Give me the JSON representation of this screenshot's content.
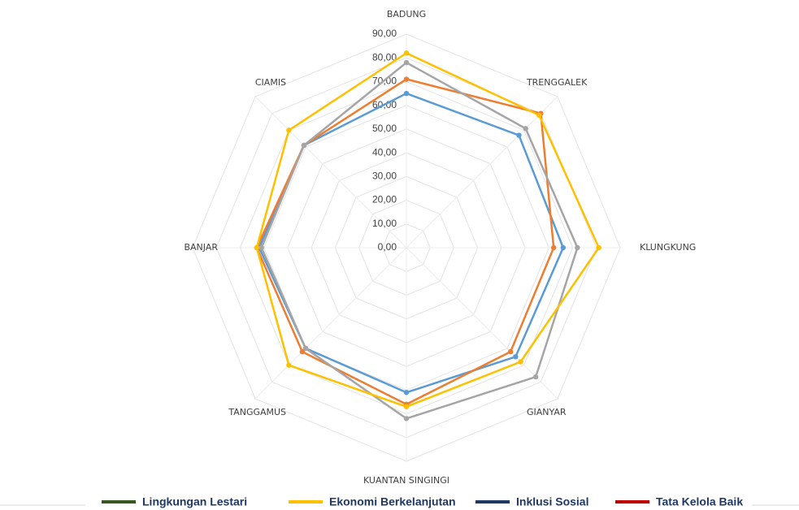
{
  "chart_data": {
    "type": "radar",
    "categories": [
      "BADUNG",
      "TRENGGALEK",
      "KLUNGKUNG",
      "GIANYAR",
      "KUANTAN SINGINGI",
      "TANGGAMUS",
      "BANJAR",
      "CIAMIS"
    ],
    "series": [
      {
        "color": "#5b9bd5",
        "values": [
          65,
          67,
          66,
          65,
          61,
          60,
          62,
          61
        ]
      },
      {
        "color": "#ed7d31",
        "values": [
          71,
          80,
          62,
          62,
          66,
          62,
          63,
          61
        ]
      },
      {
        "color": "#a5a5a5",
        "values": [
          78,
          71,
          72,
          77,
          72,
          60,
          61,
          61
        ]
      },
      {
        "color": "#ffc000",
        "values": [
          82,
          79,
          81,
          68,
          67,
          70,
          63,
          70
        ]
      }
    ],
    "ylim": [
      0,
      90
    ],
    "yticks": [
      {
        "value": 0,
        "label": "0,00"
      },
      {
        "value": 10,
        "label": "10,00"
      },
      {
        "value": 20,
        "label": "20,00"
      },
      {
        "value": 30,
        "label": "30,00"
      },
      {
        "value": 40,
        "label": "40,00"
      },
      {
        "value": 50,
        "label": "50,00"
      },
      {
        "value": 60,
        "label": "60,00"
      },
      {
        "value": 70,
        "label": "70,00"
      },
      {
        "value": 80,
        "label": "80,00"
      },
      {
        "value": 90,
        "label": "90,00"
      }
    ],
    "grid": true,
    "legend": [
      {
        "name": "Lingkungan Lestari",
        "color": "#375623"
      },
      {
        "name": "Ekonomi Berkelanjutan",
        "color": "#ffc000"
      },
      {
        "name": "Inklusi Sosial",
        "color": "#1f3864"
      },
      {
        "name": "Tata Kelola Baik",
        "color": "#c00000"
      }
    ]
  }
}
